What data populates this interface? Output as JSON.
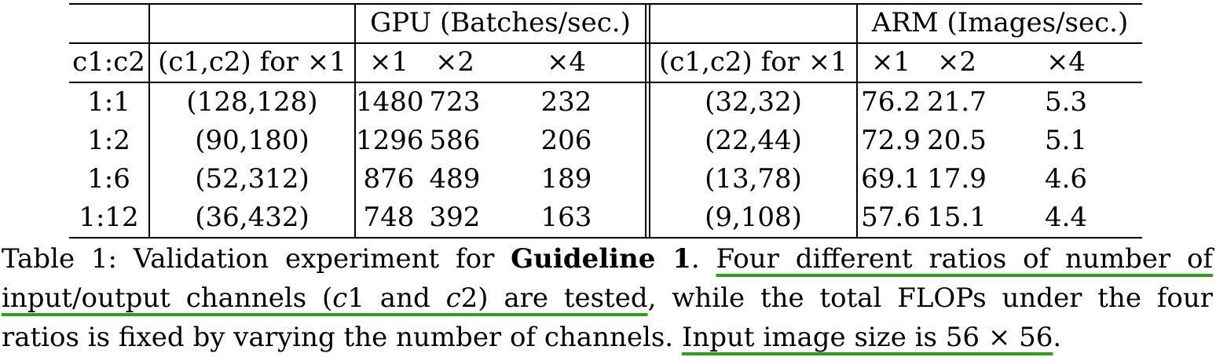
{
  "table": {
    "group_headers": {
      "gpu": "GPU (Batches/sec.)",
      "arm": "ARM (Images/sec.)"
    },
    "column_headers": {
      "ratio": "c1:c2",
      "gpu_channels": "(c1,c2) for ×1",
      "gpu_x1": "×1",
      "gpu_x2": "×2",
      "gpu_x4": "×4",
      "arm_channels": "(c1,c2) for ×1",
      "arm_x1": "×1",
      "arm_x2": "×2",
      "arm_x4": "×4"
    },
    "rows": [
      {
        "ratio": "1:1",
        "gpu_channels": "(128,128)",
        "gpu_x1": "1480",
        "gpu_x2": "723",
        "gpu_x4": "232",
        "arm_channels": "(32,32)",
        "arm_x1": "76.2",
        "arm_x2": "21.7",
        "arm_x4": "5.3"
      },
      {
        "ratio": "1:2",
        "gpu_channels": "(90,180)",
        "gpu_x1": "1296",
        "gpu_x2": "586",
        "gpu_x4": "206",
        "arm_channels": "(22,44)",
        "arm_x1": "72.9",
        "arm_x2": "20.5",
        "arm_x4": "5.1"
      },
      {
        "ratio": "1:6",
        "gpu_channels": "(52,312)",
        "gpu_x1": "876",
        "gpu_x2": "489",
        "gpu_x4": "189",
        "arm_channels": "(13,78)",
        "arm_x1": "69.1",
        "arm_x2": "17.9",
        "arm_x4": "4.6"
      },
      {
        "ratio": "1:12",
        "gpu_channels": "(36,432)",
        "gpu_x1": "748",
        "gpu_x2": "392",
        "gpu_x4": "163",
        "arm_channels": "(9,108)",
        "arm_x1": "57.6",
        "arm_x2": "15.1",
        "arm_x4": "4.4"
      }
    ]
  },
  "caption": {
    "label": "Table 1:",
    "text_before_bold": "Validation experiment for",
    "bold": "Guideline 1",
    "text_after_bold": ".",
    "highlight_1_line1": "Four different ratios of number of",
    "highlight_1_line2_a": "input/output channels (",
    "c1_var": "c",
    "c1_num": "1",
    "and_word": " and ",
    "c2_var": "c",
    "c2_num": "2",
    "highlight_1_line2_b": ") are tested",
    "comma": ",",
    "text_middle_line2": "while the total FLOPs under the four",
    "text_line3": "ratios is fixed by varying the number of channels.",
    "highlight_2": "Input image size is 56 × 56",
    "final_period": ".",
    "highlight_color": "#2f9e1a"
  }
}
